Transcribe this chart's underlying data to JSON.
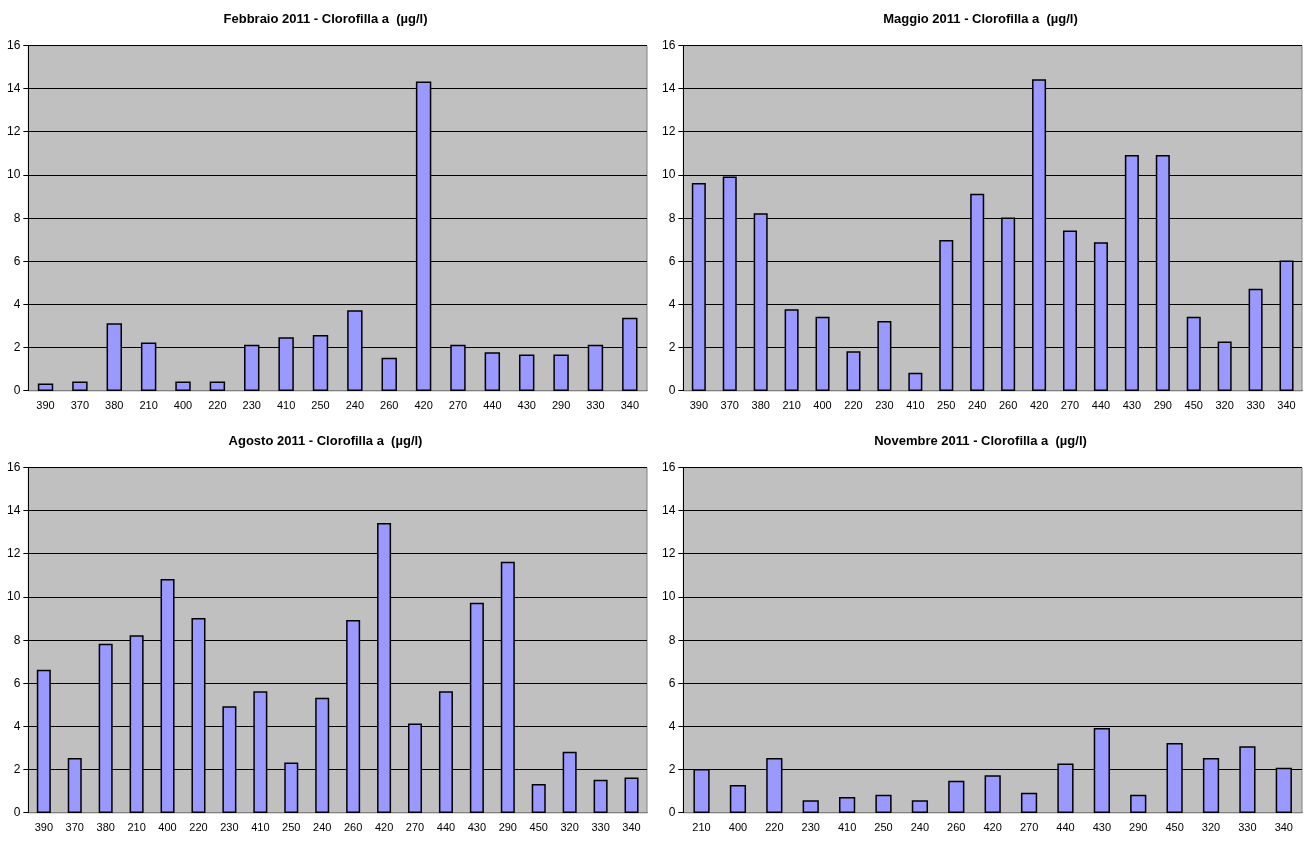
{
  "chart_data": [
    {
      "type": "bar",
      "title": "Febbraio 2011 - Clorofilla a  (µg/l)",
      "categories": [
        "390",
        "370",
        "380",
        "210",
        "400",
        "220",
        "230",
        "410",
        "250",
        "240",
        "260",
        "420",
        "270",
        "440",
        "430",
        "290",
        "330",
        "340"
      ],
      "values": [
        0.3,
        0.4,
        3.1,
        2.2,
        0.4,
        0.4,
        2.1,
        2.45,
        2.55,
        3.7,
        1.5,
        14.3,
        2.1,
        1.75,
        1.65,
        1.65,
        2.1,
        3.35
      ],
      "color": "#9999ff",
      "ylim": [
        0,
        16
      ],
      "yticks": [
        0,
        2,
        4,
        6,
        8,
        10,
        12,
        14,
        16
      ],
      "grid": "y"
    },
    {
      "type": "bar",
      "title": "Maggio 2011 - Clorofilla a  (µg/l)",
      "categories": [
        "390",
        "370",
        "380",
        "210",
        "400",
        "220",
        "230",
        "410",
        "250",
        "240",
        "260",
        "420",
        "270",
        "440",
        "430",
        "290",
        "450",
        "320",
        "330",
        "340"
      ],
      "values": [
        9.6,
        9.9,
        8.2,
        3.75,
        3.4,
        1.8,
        3.2,
        0.8,
        6.95,
        9.1,
        8.0,
        14.4,
        7.4,
        6.85,
        10.9,
        10.9,
        3.4,
        2.25,
        4.7,
        6.0
      ],
      "color": "#9999ff",
      "ylim": [
        0,
        16
      ],
      "yticks": [
        0,
        2,
        4,
        6,
        8,
        10,
        12,
        14,
        16
      ],
      "grid": "y"
    },
    {
      "type": "bar",
      "title": "Agosto 2011 - Clorofilla a  (µg/l)",
      "categories": [
        "390",
        "370",
        "380",
        "210",
        "400",
        "220",
        "230",
        "410",
        "250",
        "240",
        "260",
        "420",
        "270",
        "440",
        "430",
        "290",
        "450",
        "320",
        "330",
        "340"
      ],
      "values": [
        6.6,
        2.5,
        7.8,
        8.2,
        10.8,
        9.0,
        4.9,
        5.6,
        2.3,
        5.3,
        8.9,
        13.4,
        4.1,
        5.6,
        9.7,
        11.6,
        1.3,
        2.8,
        1.5,
        1.6
      ],
      "color": "#9999ff",
      "ylim": [
        0,
        16
      ],
      "yticks": [
        0,
        2,
        4,
        6,
        8,
        10,
        12,
        14,
        16
      ],
      "grid": "y"
    },
    {
      "type": "bar",
      "title": "Novembre 2011 - Clorofilla a  (µg/l)",
      "categories": [
        "210",
        "400",
        "220",
        "230",
        "410",
        "250",
        "240",
        "260",
        "420",
        "270",
        "440",
        "430",
        "290",
        "450",
        "320",
        "330",
        "340"
      ],
      "values": [
        2.0,
        1.25,
        2.5,
        0.55,
        0.7,
        0.8,
        0.55,
        1.45,
        1.7,
        0.9,
        2.25,
        3.9,
        0.8,
        3.2,
        2.5,
        3.05,
        2.05
      ],
      "color": "#9999ff",
      "ylim": [
        0,
        16
      ],
      "yticks": [
        0,
        2,
        4,
        6,
        8,
        10,
        12,
        14,
        16
      ],
      "grid": "y"
    }
  ]
}
